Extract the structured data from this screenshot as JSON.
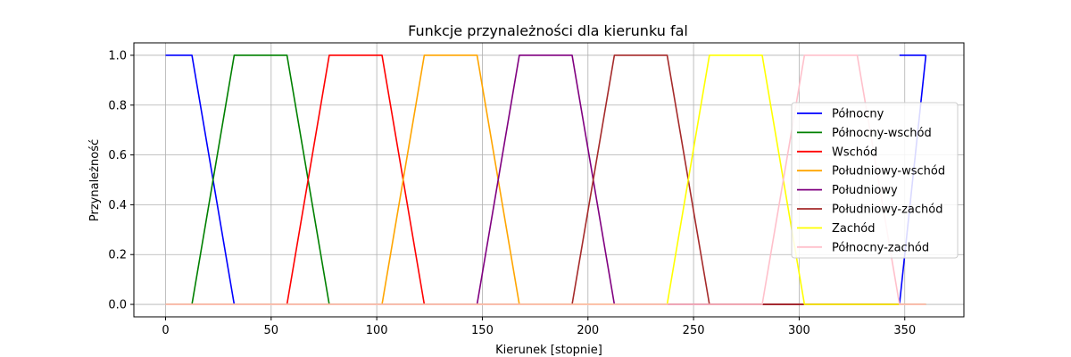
{
  "chart_data": {
    "type": "line",
    "title": "Funkcje przynależności dla kierunku fal",
    "xlabel": "Kierunek [stopnie]",
    "ylabel": "Przynależność",
    "xlim": [
      -15,
      378
    ],
    "ylim": [
      -0.05,
      1.05
    ],
    "xticks": [
      0,
      50,
      100,
      150,
      200,
      250,
      300,
      350
    ],
    "yticks": [
      0.0,
      0.2,
      0.4,
      0.6,
      0.8,
      1.0
    ],
    "xtick_labels": [
      "0",
      "50",
      "100",
      "150",
      "200",
      "250",
      "300",
      "350"
    ],
    "ytick_labels": [
      "0.0",
      "0.2",
      "0.4",
      "0.6",
      "0.8",
      "1.0"
    ],
    "grid": true,
    "legend_position": "right",
    "series": [
      {
        "name": "Północny",
        "color": "#0000ff",
        "x": [
          0,
          12.5,
          32.5,
          347.5,
          360
        ],
        "y": [
          1,
          1,
          0,
          0,
          1
        ],
        "tail_x": [
          347.5,
          360
        ],
        "tail_y": [
          1,
          1
        ]
      },
      {
        "name": "Północny-wschód",
        "color": "#008000",
        "x": [
          0,
          12.5,
          32.5,
          57.5,
          77.5,
          360
        ],
        "y": [
          0,
          0,
          1,
          1,
          0,
          0
        ]
      },
      {
        "name": "Wschód",
        "color": "#ff0000",
        "x": [
          0,
          57.5,
          77.5,
          102.5,
          122.5,
          360
        ],
        "y": [
          0,
          0,
          1,
          1,
          0,
          0
        ]
      },
      {
        "name": "Południowy-wschód",
        "color": "#ffa500",
        "x": [
          0,
          102.5,
          122.5,
          147.5,
          167.5,
          360
        ],
        "y": [
          0,
          0,
          1,
          1,
          0,
          0
        ]
      },
      {
        "name": "Południowy",
        "color": "#800080",
        "x": [
          0,
          147.5,
          167.5,
          192.5,
          212.5,
          360
        ],
        "y": [
          0,
          0,
          1,
          1,
          0,
          0
        ]
      },
      {
        "name": "Południowy-zachód",
        "color": "#a52a2a",
        "x": [
          0,
          192.5,
          212.5,
          237.5,
          257.5,
          360
        ],
        "y": [
          0,
          0,
          1,
          1,
          0,
          0
        ]
      },
      {
        "name": "Zachód",
        "color": "#ffff00",
        "x": [
          0,
          237.5,
          257.5,
          282.5,
          302.5,
          360
        ],
        "y": [
          0,
          0,
          1,
          1,
          0,
          0
        ]
      },
      {
        "name": "Północny-zachód",
        "color": "#ffc0cb",
        "x": [
          0,
          282.5,
          302.5,
          327.5,
          347.5,
          360
        ],
        "y": [
          0,
          0,
          1,
          1,
          0,
          0
        ]
      }
    ]
  }
}
